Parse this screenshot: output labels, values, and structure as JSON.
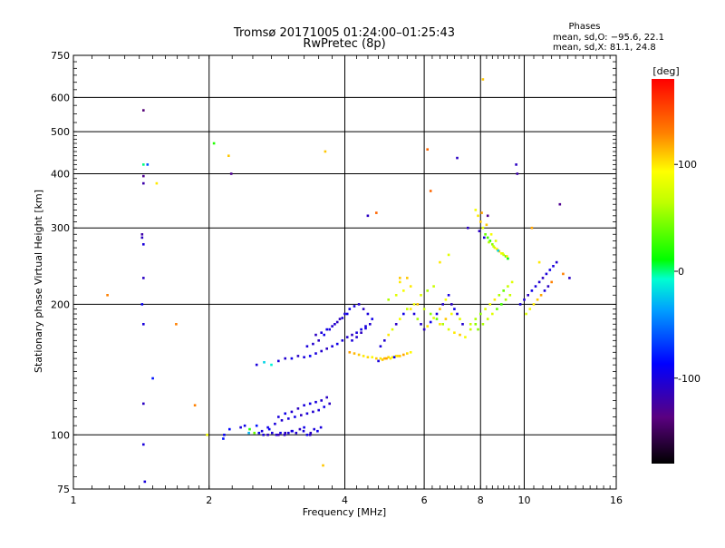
{
  "chart_data": {
    "type": "scatter",
    "title": "Tromsø 20171005 01:24:00–01:25:43",
    "subtitle": "RwPretec (8p)",
    "xlabel": "Frequency [MHz]",
    "ylabel": "Stationary phase Virtual Height [km]",
    "x_scale": "log",
    "y_scale": "log",
    "xlim": [
      1,
      16
    ],
    "ylim": [
      75,
      750
    ],
    "grid": true,
    "x_ticks": [
      1,
      2,
      4,
      6,
      8,
      10,
      16
    ],
    "y_ticks": [
      75,
      100,
      200,
      300,
      400,
      500,
      600,
      750
    ],
    "info": {
      "heading": "Phases",
      "line_o": "mean, sd,O: −95.6, 22.1",
      "line_x": "mean, sd,X:  81.1, 24.8"
    },
    "colorbar": {
      "label": "[deg]",
      "range": [
        -180,
        180
      ],
      "ticks": [
        100,
        0,
        -100
      ]
    },
    "series": [
      {
        "x": [
          1.43,
          1.43,
          1.43,
          1.42,
          1.42,
          1.43,
          1.43,
          1.42,
          1.43,
          1.43,
          1.43,
          1.44,
          1.43,
          1.46,
          1.5,
          1.53
        ],
        "y": [
          560,
          395,
          380,
          290,
          285,
          275,
          230,
          200,
          180,
          118,
          95,
          78,
          420,
          420,
          135,
          380
        ],
        "phase": [
          -140,
          -130,
          -120,
          -120,
          -110,
          -100,
          -110,
          -90,
          -100,
          -110,
          -100,
          -100,
          0,
          -60,
          -80,
          100
        ]
      },
      {
        "x": [
          1.19,
          1.69,
          1.86,
          1.98,
          2.05,
          2.21,
          2.24,
          2.15
        ],
        "y": [
          210,
          180,
          117,
          100,
          470,
          440,
          400,
          98
        ],
        "phase": [
          130,
          130,
          130,
          90,
          20,
          110,
          -130,
          -80
        ]
      },
      {
        "x": [
          2.16,
          2.22,
          2.35,
          2.4,
          2.46,
          2.52,
          2.58,
          2.64,
          2.7,
          2.76,
          2.82,
          2.88,
          2.94,
          3.0,
          3.06,
          3.12,
          3.18,
          3.24,
          3.3,
          3.36,
          3.42,
          3.48,
          3.54,
          2.45,
          2.55,
          2.62,
          2.72,
          2.85,
          2.95,
          3.05,
          3.25,
          3.35
        ],
        "y": [
          100,
          103,
          104,
          105,
          103,
          101,
          101,
          100,
          100,
          101,
          100,
          101,
          100,
          101,
          102,
          101,
          103,
          102,
          100,
          101,
          103,
          102,
          104,
          101,
          105,
          102,
          103,
          100,
          101,
          102,
          104,
          100
        ],
        "phase": [
          -90,
          -85,
          -100,
          -95,
          20,
          40,
          -90,
          -100,
          -110,
          -100,
          -105,
          -95,
          -110,
          -100,
          -90,
          -105,
          -110,
          -100,
          -95,
          -110,
          -100,
          -95,
          -100,
          -30,
          -80,
          -100,
          -90,
          -120,
          -110,
          -100,
          -95,
          -110
        ]
      },
      {
        "x": [
          2.7,
          2.8,
          2.9,
          3.0,
          3.1,
          3.2,
          3.3,
          3.4,
          3.5,
          3.6,
          3.7,
          2.85,
          2.95,
          3.05,
          3.15,
          3.25,
          3.35,
          3.45,
          3.55,
          3.65
        ],
        "y": [
          104,
          106,
          108,
          109,
          110,
          111,
          112,
          113,
          114,
          116,
          118,
          110,
          112,
          113,
          115,
          117,
          118,
          119,
          120,
          122
        ],
        "phase": [
          -95,
          -100,
          -105,
          -100,
          -95,
          -110,
          -100,
          -105,
          -100,
          -95,
          -110,
          -100,
          -95,
          -105,
          -110,
          -100,
          -95,
          -100,
          -105,
          -110
        ]
      },
      {
        "x": [
          2.55,
          2.65,
          2.75,
          2.85,
          2.95,
          3.05,
          3.15,
          3.25,
          3.35,
          3.45,
          3.55,
          3.65,
          3.75,
          3.85,
          3.95,
          4.05,
          4.15,
          4.25,
          4.35,
          4.45,
          4.55
        ],
        "y": [
          145,
          147,
          145,
          148,
          150,
          150,
          152,
          151,
          152,
          154,
          156,
          158,
          160,
          162,
          165,
          168,
          170,
          172,
          175,
          178,
          180
        ],
        "phase": [
          -100,
          -20,
          -10,
          -100,
          -105,
          -95,
          -110,
          -100,
          -90,
          -100,
          -105,
          -110,
          -100,
          -95,
          -100,
          -105,
          -110,
          -100,
          -95,
          -100,
          -105
        ]
      },
      {
        "x": [
          3.3,
          3.4,
          3.5,
          3.6,
          3.7,
          3.8,
          3.9,
          4.0,
          4.1,
          4.2,
          4.3,
          4.4,
          4.5,
          4.6,
          3.45,
          3.55,
          3.65,
          3.75,
          3.85,
          3.95,
          4.05,
          4.15,
          4.25,
          4.35,
          4.45
        ],
        "y": [
          160,
          162,
          165,
          170,
          175,
          180,
          185,
          190,
          195,
          198,
          200,
          195,
          190,
          185,
          170,
          172,
          175,
          178,
          182,
          186,
          190,
          165,
          168,
          172,
          176
        ],
        "phase": [
          -100,
          -105,
          -110,
          -95,
          -100,
          -105,
          -110,
          -100,
          -95,
          -100,
          -105,
          -110,
          -100,
          -95,
          -110,
          -100,
          -95,
          -105,
          -110,
          -100,
          -95,
          -100,
          -105,
          -110,
          -100
        ]
      },
      {
        "x": [
          4.1,
          4.2,
          4.3,
          4.4,
          4.5,
          4.6,
          4.7,
          4.8,
          4.9,
          5.0,
          5.1,
          5.2,
          5.3,
          5.4,
          5.5,
          5.6,
          4.75,
          4.85,
          4.95,
          5.05,
          5.15,
          5.25
        ],
        "y": [
          155,
          154,
          153,
          152,
          151,
          151,
          150,
          150,
          150,
          151,
          151,
          152,
          152,
          153,
          154,
          155,
          148,
          149,
          150,
          150,
          151,
          152
        ],
        "phase": [
          120,
          115,
          110,
          100,
          105,
          95,
          110,
          100,
          115,
          105,
          95,
          100,
          110,
          120,
          105,
          95,
          -100,
          110,
          120,
          100,
          -90,
          105
        ]
      },
      {
        "x": [
          4.8,
          4.9,
          5.0,
          5.1,
          5.2,
          5.3,
          5.4,
          5.5,
          5.6,
          5.7,
          5.8,
          5.9,
          6.0,
          6.1,
          6.2,
          6.3,
          6.4,
          6.5,
          6.6,
          6.7,
          6.8,
          6.9,
          7.0,
          7.1,
          7.2,
          7.3
        ],
        "y": [
          160,
          165,
          170,
          175,
          180,
          185,
          190,
          195,
          195,
          190,
          185,
          180,
          175,
          178,
          182,
          186,
          190,
          195,
          200,
          205,
          210,
          200,
          195,
          190,
          185,
          180
        ],
        "phase": [
          -100,
          -105,
          100,
          80,
          -110,
          90,
          -95,
          70,
          100,
          -100,
          60,
          -105,
          -110,
          100,
          -95,
          80,
          -100,
          110,
          -105,
          90,
          -100,
          -110,
          -95,
          -100,
          80,
          -105
        ]
      },
      {
        "x": [
          5.0,
          5.2,
          5.4,
          5.6,
          5.8,
          6.0,
          6.2,
          6.4,
          6.6,
          6.8,
          7.0,
          7.2,
          7.4,
          7.6,
          7.8,
          5.3,
          5.5,
          5.7,
          5.9,
          6.1,
          6.3,
          6.5,
          6.7,
          6.9
        ],
        "y": [
          205,
          210,
          215,
          220,
          200,
          195,
          190,
          185,
          180,
          175,
          172,
          170,
          168,
          175,
          180,
          225,
          230,
          200,
          210,
          215,
          220,
          180,
          185,
          190
        ],
        "phase": [
          60,
          80,
          90,
          100,
          110,
          70,
          50,
          40,
          60,
          80,
          100,
          110,
          90,
          70,
          50,
          100,
          110,
          90,
          80,
          60,
          70,
          100,
          110,
          90
        ]
      },
      {
        "x": [
          7.6,
          7.8,
          8.0,
          8.2,
          8.4,
          8.6,
          8.8,
          9.0,
          9.2,
          9.4,
          7.9,
          8.1,
          8.3,
          8.5,
          8.7,
          8.9,
          9.1,
          9.3
        ],
        "y": [
          180,
          185,
          190,
          195,
          200,
          205,
          210,
          215,
          220,
          225,
          175,
          180,
          185,
          190,
          195,
          200,
          205,
          210
        ],
        "phase": [
          70,
          60,
          50,
          80,
          90,
          100,
          60,
          40,
          70,
          80,
          50,
          60,
          70,
          80,
          40,
          30,
          60,
          70
        ]
      },
      {
        "x": [
          7.8,
          7.9,
          8.0,
          8.1,
          8.2,
          8.3,
          8.4,
          8.5,
          8.6,
          8.7,
          8.8,
          8.9,
          9.0,
          9.1,
          9.2,
          7.95,
          8.15,
          8.35,
          8.55,
          8.75,
          8.95,
          9.15,
          8.05,
          8.25,
          8.45,
          8.65
        ],
        "y": [
          330,
          320,
          310,
          300,
          290,
          285,
          280,
          275,
          270,
          268,
          265,
          262,
          260,
          258,
          255,
          295,
          285,
          278,
          272,
          266,
          262,
          258,
          325,
          305,
          290,
          280
        ],
        "phase": [
          90,
          100,
          110,
          80,
          40,
          30,
          20,
          50,
          80,
          100,
          110,
          90,
          70,
          30,
          10,
          -110,
          -100,
          60,
          70,
          -20,
          80,
          100,
          120,
          110,
          90,
          80
        ]
      },
      {
        "x": [
          9.8,
          10.0,
          10.2,
          10.4,
          10.6,
          10.8,
          11.0,
          11.2,
          11.4,
          11.6,
          11.8,
          10.1,
          10.3,
          10.5,
          10.7,
          10.9,
          11.1,
          11.3,
          11.5,
          12.2,
          12.6
        ],
        "y": [
          200,
          205,
          210,
          215,
          220,
          225,
          230,
          235,
          240,
          245,
          250,
          190,
          195,
          200,
          205,
          210,
          215,
          220,
          225,
          235,
          230
        ],
        "phase": [
          -100,
          -105,
          -110,
          -95,
          -100,
          -105,
          -110,
          -100,
          -95,
          -100,
          -105,
          80,
          90,
          100,
          110,
          120,
          -100,
          -110,
          130,
          130,
          -110
        ]
      },
      {
        "x": [
          3.62,
          3.58,
          4.5,
          4.7,
          6.1,
          6.2,
          7.1,
          8.1,
          8.3,
          9.6,
          9.65,
          12.0,
          10.4,
          10.8,
          7.5,
          6.8,
          6.5,
          5.3
        ],
        "y": [
          450,
          85,
          320,
          325,
          455,
          365,
          435,
          660,
          320,
          420,
          400,
          340,
          300,
          250,
          300,
          260,
          250,
          230
        ],
        "phase": [
          110,
          110,
          -110,
          140,
          140,
          140,
          -110,
          110,
          -130,
          -110,
          -120,
          -130,
          120,
          100,
          -110,
          80,
          100,
          110
        ]
      }
    ]
  }
}
